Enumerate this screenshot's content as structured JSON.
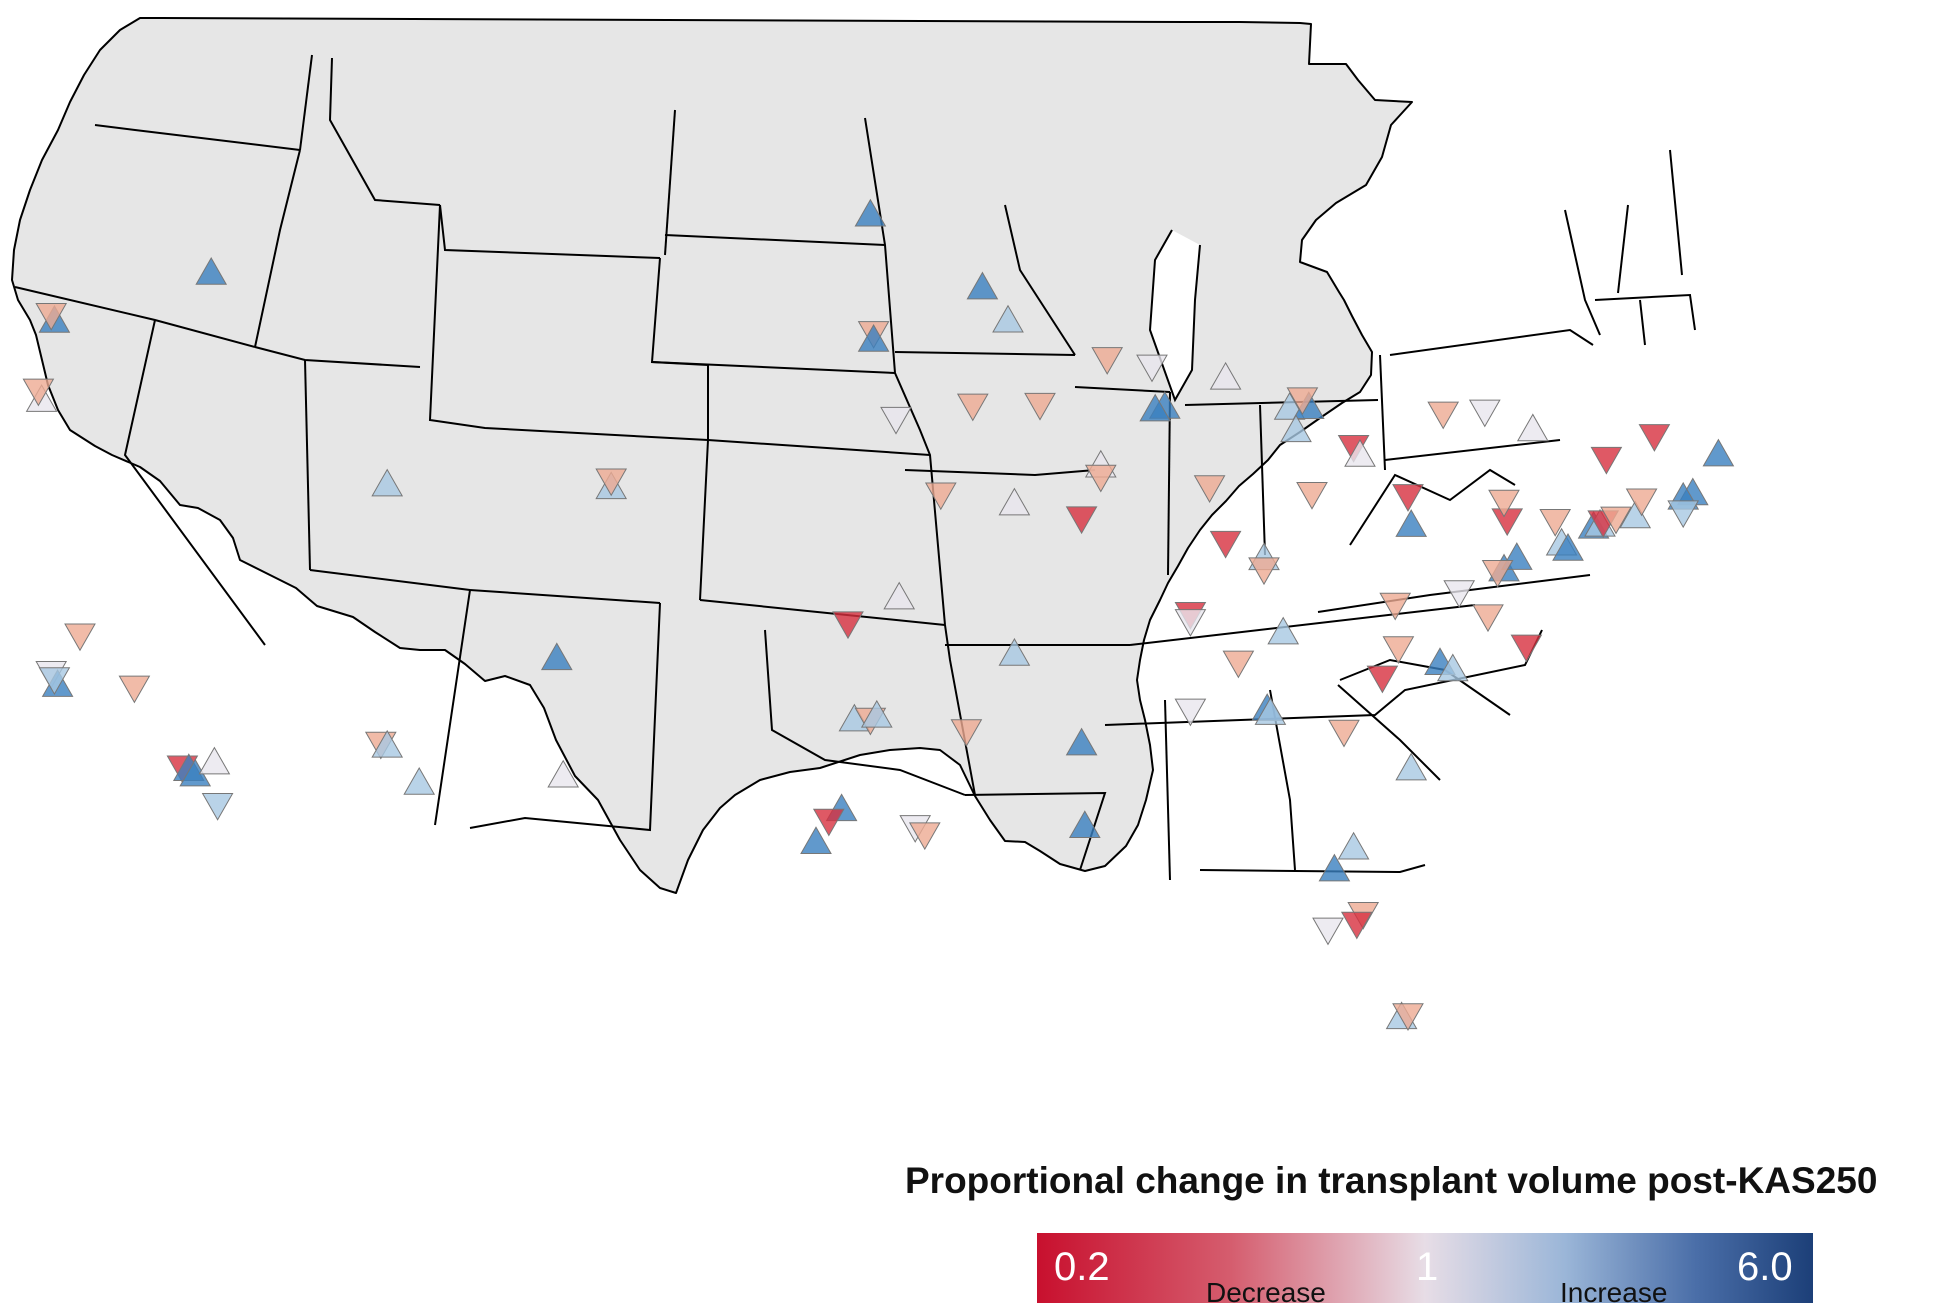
{
  "legend": {
    "title": "Proportional change in transplant volume post-KAS250",
    "min_label": "0.2",
    "mid_label": "1",
    "max_label": "6.0",
    "decrease_label": "Decrease",
    "increase_label": "Increase"
  },
  "colors": {
    "land": "#e6e6e6",
    "border": "#000000",
    "strong_decrease": "#d7303f",
    "mild_decrease": "#eeaa92",
    "neutral": "#e9e6ee",
    "mild_increase": "#a7c8e2",
    "strong_increase": "#3a7fbf"
  },
  "chart_data": {
    "type": "scatter",
    "scale": {
      "min": 0.2,
      "mid": 1,
      "max": 6.0
    },
    "markers": [
      {
        "lon": -122.3,
        "lat": 47.6,
        "dir": "up",
        "c": "strong_increase"
      },
      {
        "lon": -122.4,
        "lat": 47.8,
        "dir": "down",
        "c": "mild_decrease"
      },
      {
        "lon": -117.4,
        "lat": 47.7,
        "dir": "up",
        "c": "strong_increase"
      },
      {
        "lon": -122.7,
        "lat": 45.5,
        "dir": "up",
        "c": "neutral"
      },
      {
        "lon": -122.8,
        "lat": 45.8,
        "dir": "down",
        "c": "mild_decrease"
      },
      {
        "lon": -121.5,
        "lat": 38.6,
        "dir": "down",
        "c": "mild_decrease"
      },
      {
        "lon": -122.4,
        "lat": 37.8,
        "dir": "down",
        "c": "neutral"
      },
      {
        "lon": -122.2,
        "lat": 37.4,
        "dir": "up",
        "c": "strong_increase"
      },
      {
        "lon": -122.3,
        "lat": 37.6,
        "dir": "down",
        "c": "mild_increase"
      },
      {
        "lon": -119.8,
        "lat": 36.7,
        "dir": "down",
        "c": "mild_decrease"
      },
      {
        "lon": -118.3,
        "lat": 34.1,
        "dir": "down",
        "c": "strong_decrease"
      },
      {
        "lon": -118.1,
        "lat": 34.0,
        "dir": "up",
        "c": "strong_increase"
      },
      {
        "lon": -117.9,
        "lat": 33.8,
        "dir": "up",
        "c": "strong_increase"
      },
      {
        "lon": -117.3,
        "lat": 34.0,
        "dir": "up",
        "c": "neutral"
      },
      {
        "lon": -117.2,
        "lat": 32.8,
        "dir": "down",
        "c": "mild_increase"
      },
      {
        "lon": -111.9,
        "lat": 40.7,
        "dir": "up",
        "c": "mild_increase"
      },
      {
        "lon": -104.9,
        "lat": 39.7,
        "dir": "up",
        "c": "mild_increase"
      },
      {
        "lon": -104.9,
        "lat": 39.9,
        "dir": "down",
        "c": "mild_decrease"
      },
      {
        "lon": -112.1,
        "lat": 33.5,
        "dir": "down",
        "c": "mild_decrease"
      },
      {
        "lon": -111.9,
        "lat": 33.4,
        "dir": "up",
        "c": "mild_increase"
      },
      {
        "lon": -110.9,
        "lat": 32.2,
        "dir": "up",
        "c": "mild_increase"
      },
      {
        "lon": -106.6,
        "lat": 35.1,
        "dir": "up",
        "c": "strong_increase"
      },
      {
        "lon": -106.4,
        "lat": 31.8,
        "dir": "up",
        "c": "neutral"
      },
      {
        "lon": -96.8,
        "lat": 46.9,
        "dir": "up",
        "c": "strong_increase"
      },
      {
        "lon": -96.7,
        "lat": 43.6,
        "dir": "down",
        "c": "mild_decrease"
      },
      {
        "lon": -96.7,
        "lat": 43.4,
        "dir": "up",
        "c": "strong_increase"
      },
      {
        "lon": -93.3,
        "lat": 44.9,
        "dir": "up",
        "c": "strong_increase"
      },
      {
        "lon": -92.5,
        "lat": 44.0,
        "dir": "up",
        "c": "mild_increase"
      },
      {
        "lon": -96.0,
        "lat": 41.2,
        "dir": "down",
        "c": "neutral"
      },
      {
        "lon": -93.6,
        "lat": 41.6,
        "dir": "down",
        "c": "mild_decrease"
      },
      {
        "lon": -91.5,
        "lat": 41.7,
        "dir": "down",
        "c": "mild_decrease"
      },
      {
        "lon": -94.6,
        "lat": 39.1,
        "dir": "down",
        "c": "mild_decrease"
      },
      {
        "lon": -92.3,
        "lat": 38.9,
        "dir": "up",
        "c": "neutral"
      },
      {
        "lon": -90.2,
        "lat": 38.6,
        "dir": "down",
        "c": "strong_decrease"
      },
      {
        "lon": -97.5,
        "lat": 35.5,
        "dir": "down",
        "c": "strong_decrease"
      },
      {
        "lon": -95.9,
        "lat": 36.2,
        "dir": "up",
        "c": "neutral"
      },
      {
        "lon": -92.3,
        "lat": 34.7,
        "dir": "up",
        "c": "mild_increase"
      },
      {
        "lon": -97.3,
        "lat": 32.8,
        "dir": "up",
        "c": "mild_increase"
      },
      {
        "lon": -96.8,
        "lat": 32.8,
        "dir": "down",
        "c": "mild_decrease"
      },
      {
        "lon": -96.6,
        "lat": 32.9,
        "dir": "up",
        "c": "mild_increase"
      },
      {
        "lon": -97.7,
        "lat": 30.3,
        "dir": "up",
        "c": "strong_increase"
      },
      {
        "lon": -98.1,
        "lat": 30.0,
        "dir": "down",
        "c": "strong_decrease"
      },
      {
        "lon": -98.5,
        "lat": 29.4,
        "dir": "up",
        "c": "strong_increase"
      },
      {
        "lon": -95.4,
        "lat": 29.8,
        "dir": "down",
        "c": "neutral"
      },
      {
        "lon": -95.1,
        "lat": 29.6,
        "dir": "down",
        "c": "mild_decrease"
      },
      {
        "lon": -93.8,
        "lat": 32.5,
        "dir": "down",
        "c": "mild_decrease"
      },
      {
        "lon": -90.1,
        "lat": 30.0,
        "dir": "up",
        "c": "strong_increase"
      },
      {
        "lon": -90.2,
        "lat": 32.3,
        "dir": "up",
        "c": "strong_increase"
      },
      {
        "lon": -89.4,
        "lat": 43.1,
        "dir": "down",
        "c": "mild_decrease"
      },
      {
        "lon": -88.0,
        "lat": 43.0,
        "dir": "down",
        "c": "neutral"
      },
      {
        "lon": -87.6,
        "lat": 41.9,
        "dir": "up",
        "c": "strong_increase"
      },
      {
        "lon": -87.9,
        "lat": 41.8,
        "dir": "up",
        "c": "strong_increase"
      },
      {
        "lon": -89.6,
        "lat": 40.1,
        "dir": "up",
        "c": "neutral"
      },
      {
        "lon": -89.6,
        "lat": 39.8,
        "dir": "down",
        "c": "mild_decrease"
      },
      {
        "lon": -86.2,
        "lat": 39.8,
        "dir": "down",
        "c": "mild_decrease"
      },
      {
        "lon": -85.7,
        "lat": 38.3,
        "dir": "down",
        "c": "strong_decrease"
      },
      {
        "lon": -84.5,
        "lat": 38.0,
        "dir": "up",
        "c": "mild_increase"
      },
      {
        "lon": -84.5,
        "lat": 37.7,
        "dir": "down",
        "c": "mild_decrease"
      },
      {
        "lon": -85.7,
        "lat": 42.9,
        "dir": "up",
        "c": "neutral"
      },
      {
        "lon": -83.7,
        "lat": 42.3,
        "dir": "up",
        "c": "mild_increase"
      },
      {
        "lon": -83.1,
        "lat": 42.4,
        "dir": "up",
        "c": "strong_increase"
      },
      {
        "lon": -83.3,
        "lat": 42.6,
        "dir": "down",
        "c": "mild_decrease"
      },
      {
        "lon": -83.5,
        "lat": 41.7,
        "dir": "up",
        "c": "mild_increase"
      },
      {
        "lon": -81.7,
        "lat": 41.5,
        "dir": "down",
        "c": "strong_decrease"
      },
      {
        "lon": -81.5,
        "lat": 41.3,
        "dir": "up",
        "c": "neutral"
      },
      {
        "lon": -83.0,
        "lat": 40.0,
        "dir": "down",
        "c": "mild_decrease"
      },
      {
        "lon": -80.0,
        "lat": 40.4,
        "dir": "down",
        "c": "strong_decrease"
      },
      {
        "lon": -79.9,
        "lat": 39.6,
        "dir": "up",
        "c": "strong_increase"
      },
      {
        "lon": -80.4,
        "lat": 37.3,
        "dir": "down",
        "c": "mild_decrease"
      },
      {
        "lon": -86.8,
        "lat": 36.2,
        "dir": "down",
        "c": "strong_decrease"
      },
      {
        "lon": -86.8,
        "lat": 36.0,
        "dir": "down",
        "c": "neutral"
      },
      {
        "lon": -85.3,
        "lat": 35.0,
        "dir": "down",
        "c": "mild_decrease"
      },
      {
        "lon": -83.9,
        "lat": 36.0,
        "dir": "up",
        "c": "mild_increase"
      },
      {
        "lon": -86.8,
        "lat": 33.5,
        "dir": "down",
        "c": "neutral"
      },
      {
        "lon": -84.4,
        "lat": 33.8,
        "dir": "up",
        "c": "strong_increase"
      },
      {
        "lon": -84.3,
        "lat": 33.7,
        "dir": "up",
        "c": "mild_increase"
      },
      {
        "lon": -82.0,
        "lat": 33.5,
        "dir": "down",
        "c": "mild_decrease"
      },
      {
        "lon": -80.8,
        "lat": 35.2,
        "dir": "down",
        "c": "strong_decrease"
      },
      {
        "lon": -80.3,
        "lat": 36.1,
        "dir": "down",
        "c": "mild_decrease"
      },
      {
        "lon": -79.0,
        "lat": 35.9,
        "dir": "up",
        "c": "strong_increase"
      },
      {
        "lon": -78.6,
        "lat": 35.8,
        "dir": "up",
        "c": "mild_increase"
      },
      {
        "lon": -79.9,
        "lat": 32.8,
        "dir": "up",
        "c": "mild_increase"
      },
      {
        "lon": -81.7,
        "lat": 30.3,
        "dir": "up",
        "c": "mild_increase"
      },
      {
        "lon": -82.3,
        "lat": 29.6,
        "dir": "up",
        "c": "strong_increase"
      },
      {
        "lon": -81.4,
        "lat": 28.5,
        "dir": "down",
        "c": "mild_decrease"
      },
      {
        "lon": -81.6,
        "lat": 28.2,
        "dir": "down",
        "c": "strong_decrease"
      },
      {
        "lon": -82.5,
        "lat": 27.9,
        "dir": "down",
        "c": "neutral"
      },
      {
        "lon": -80.2,
        "lat": 25.8,
        "dir": "up",
        "c": "mild_increase"
      },
      {
        "lon": -80.0,
        "lat": 25.9,
        "dir": "down",
        "c": "mild_decrease"
      },
      {
        "lon": -78.4,
        "lat": 38.0,
        "dir": "down",
        "c": "neutral"
      },
      {
        "lon": -77.5,
        "lat": 37.5,
        "dir": "down",
        "c": "mild_decrease"
      },
      {
        "lon": -76.3,
        "lat": 36.9,
        "dir": "down",
        "c": "strong_decrease"
      },
      {
        "lon": -77.0,
        "lat": 38.9,
        "dir": "up",
        "c": "strong_increase"
      },
      {
        "lon": -76.6,
        "lat": 39.3,
        "dir": "up",
        "c": "strong_increase"
      },
      {
        "lon": -77.2,
        "lat": 38.8,
        "dir": "down",
        "c": "mild_decrease"
      },
      {
        "lon": -76.9,
        "lat": 40.3,
        "dir": "down",
        "c": "strong_decrease"
      },
      {
        "lon": -77.0,
        "lat": 40.8,
        "dir": "down",
        "c": "mild_decrease"
      },
      {
        "lon": -75.2,
        "lat": 40.0,
        "dir": "up",
        "c": "mild_increase"
      },
      {
        "lon": -75.4,
        "lat": 40.6,
        "dir": "down",
        "c": "mild_decrease"
      },
      {
        "lon": -74.2,
        "lat": 40.7,
        "dir": "up",
        "c": "strong_increase"
      },
      {
        "lon": -74.0,
        "lat": 40.8,
        "dir": "up",
        "c": "mild_increase"
      },
      {
        "lon": -73.9,
        "lat": 40.9,
        "dir": "down",
        "c": "strong_decrease"
      },
      {
        "lon": -73.5,
        "lat": 41.1,
        "dir": "down",
        "c": "mild_decrease"
      },
      {
        "lon": -75.0,
        "lat": 39.9,
        "dir": "up",
        "c": "strong_increase"
      },
      {
        "lon": -73.8,
        "lat": 42.7,
        "dir": "down",
        "c": "strong_decrease"
      },
      {
        "lon": -76.1,
        "lat": 43.0,
        "dir": "up",
        "c": "neutral"
      },
      {
        "lon": -77.6,
        "lat": 43.2,
        "dir": "down",
        "c": "neutral"
      },
      {
        "lon": -78.9,
        "lat": 42.9,
        "dir": "down",
        "c": "mild_decrease"
      },
      {
        "lon": -72.9,
        "lat": 41.3,
        "dir": "up",
        "c": "mild_increase"
      },
      {
        "lon": -72.7,
        "lat": 41.8,
        "dir": "down",
        "c": "mild_decrease"
      },
      {
        "lon": -71.1,
        "lat": 42.4,
        "dir": "up",
        "c": "strong_increase"
      },
      {
        "lon": -71.4,
        "lat": 42.2,
        "dir": "up",
        "c": "strong_increase"
      },
      {
        "lon": -71.4,
        "lat": 41.8,
        "dir": "down",
        "c": "mild_increase"
      },
      {
        "lon": -72.3,
        "lat": 43.7,
        "dir": "down",
        "c": "strong_decrease"
      },
      {
        "lon": -70.3,
        "lat": 43.7,
        "dir": "up",
        "c": "strong_increase"
      }
    ]
  }
}
